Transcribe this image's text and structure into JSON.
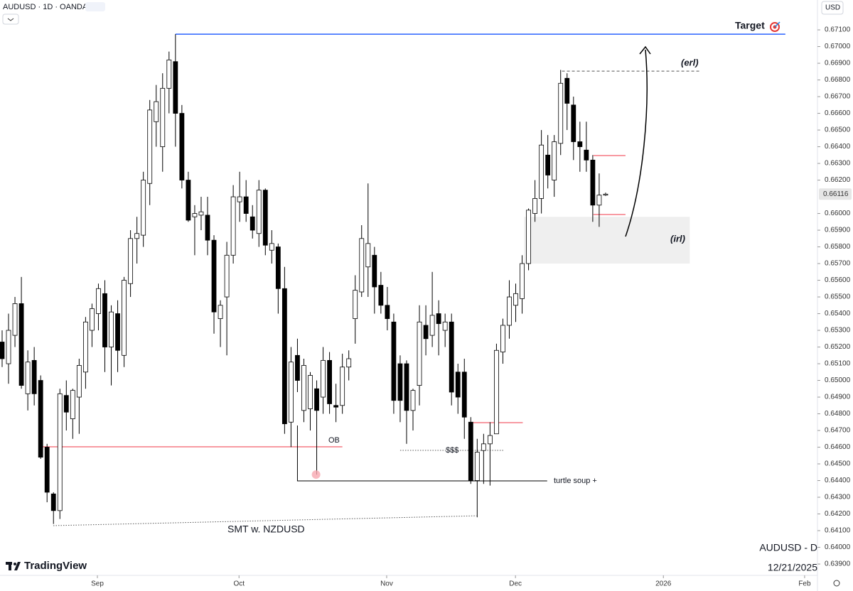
{
  "header": {
    "symbol": "AUDUSD · 1D · OANDA",
    "currency": "USD"
  },
  "chart_data": {
    "type": "candlestick",
    "ohlc": [
      [
        0.6523,
        0.653,
        0.6508,
        0.6513
      ],
      [
        0.651,
        0.654,
        0.6498,
        0.653
      ],
      [
        0.6527,
        0.655,
        0.652,
        0.6546
      ],
      [
        0.6546,
        0.6562,
        0.6495,
        0.6497
      ],
      [
        0.6492,
        0.6518,
        0.6482,
        0.6511
      ],
      [
        0.6512,
        0.652,
        0.6485,
        0.6492
      ],
      [
        0.65,
        0.6503,
        0.6453,
        0.6454
      ],
      [
        0.646,
        0.6462,
        0.6427,
        0.6433
      ],
      [
        0.6432,
        0.6433,
        0.6414,
        0.6422
      ],
      [
        0.6422,
        0.6495,
        0.6417,
        0.6492
      ],
      [
        0.6491,
        0.65,
        0.647,
        0.6481
      ],
      [
        0.6477,
        0.6495,
        0.6465,
        0.6494
      ],
      [
        0.649,
        0.6513,
        0.6468,
        0.6509
      ],
      [
        0.6505,
        0.6538,
        0.6495,
        0.6535
      ],
      [
        0.653,
        0.6546,
        0.652,
        0.6543
      ],
      [
        0.654,
        0.6558,
        0.653,
        0.6555
      ],
      [
        0.6552,
        0.656,
        0.6505,
        0.652
      ],
      [
        0.652,
        0.6545,
        0.6497,
        0.6541
      ],
      [
        0.654,
        0.6548,
        0.6505,
        0.6518
      ],
      [
        0.6515,
        0.6562,
        0.6508,
        0.656
      ],
      [
        0.6558,
        0.659,
        0.655,
        0.6585
      ],
      [
        0.6585,
        0.6598,
        0.657,
        0.6588
      ],
      [
        0.6587,
        0.6625,
        0.658,
        0.662
      ],
      [
        0.6618,
        0.6668,
        0.6605,
        0.6662
      ],
      [
        0.6655,
        0.6677,
        0.664,
        0.6667
      ],
      [
        0.664,
        0.6684,
        0.6625,
        0.6675
      ],
      [
        0.6675,
        0.6697,
        0.666,
        0.6692
      ],
      [
        0.6691,
        0.67074,
        0.664,
        0.666
      ],
      [
        0.666,
        0.6665,
        0.6615,
        0.662
      ],
      [
        0.662,
        0.6625,
        0.6595,
        0.6596
      ],
      [
        0.6598,
        0.6605,
        0.6575,
        0.66
      ],
      [
        0.6599,
        0.661,
        0.659,
        0.6601
      ],
      [
        0.6599,
        0.661,
        0.6575,
        0.6584
      ],
      [
        0.6584,
        0.6587,
        0.6528,
        0.6541
      ],
      [
        0.6537,
        0.6548,
        0.652,
        0.6545
      ],
      [
        0.655,
        0.6583,
        0.6515,
        0.6575
      ],
      [
        0.6575,
        0.6617,
        0.657,
        0.661
      ],
      [
        0.6607,
        0.6625,
        0.6595,
        0.661
      ],
      [
        0.661,
        0.662,
        0.6595,
        0.66
      ],
      [
        0.6598,
        0.6605,
        0.6585,
        0.659
      ],
      [
        0.6588,
        0.662,
        0.658,
        0.6614
      ],
      [
        0.6614,
        0.6615,
        0.6575,
        0.6581
      ],
      [
        0.6578,
        0.659,
        0.657,
        0.6582
      ],
      [
        0.658,
        0.6582,
        0.654,
        0.6555
      ],
      [
        0.6555,
        0.6568,
        0.6468,
        0.6474
      ],
      [
        0.6475,
        0.652,
        0.646,
        0.6511
      ],
      [
        0.6515,
        0.6525,
        0.6493,
        0.65
      ],
      [
        0.6482,
        0.6513,
        0.6475,
        0.6509
      ],
      [
        0.6483,
        0.6505,
        0.647,
        0.6503
      ],
      [
        0.6495,
        0.65,
        0.64436,
        0.6482
      ],
      [
        0.649,
        0.652,
        0.648,
        0.6512
      ],
      [
        0.6512,
        0.6517,
        0.648,
        0.6486
      ],
      [
        0.6485,
        0.6498,
        0.6475,
        0.6484
      ],
      [
        0.6485,
        0.6516,
        0.648,
        0.6508
      ],
      [
        0.6508,
        0.6518,
        0.65,
        0.6513
      ],
      [
        0.6537,
        0.6563,
        0.6522,
        0.6554
      ],
      [
        0.6553,
        0.6593,
        0.655,
        0.6585
      ],
      [
        0.6568,
        0.6618,
        0.655,
        0.6582
      ],
      [
        0.6575,
        0.658,
        0.654,
        0.6556
      ],
      [
        0.6557,
        0.6565,
        0.654,
        0.6545
      ],
      [
        0.6545,
        0.6556,
        0.653,
        0.6537
      ],
      [
        0.6535,
        0.654,
        0.648,
        0.6488
      ],
      [
        0.651,
        0.6515,
        0.6475,
        0.6488
      ],
      [
        0.651,
        0.6512,
        0.6462,
        0.6482
      ],
      [
        0.6482,
        0.6495,
        0.647,
        0.6494
      ],
      [
        0.6497,
        0.6545,
        0.6485,
        0.6535
      ],
      [
        0.6533,
        0.6545,
        0.6515,
        0.6525
      ],
      [
        0.6527,
        0.6565,
        0.652,
        0.6539
      ],
      [
        0.654,
        0.6548,
        0.6515,
        0.6534
      ],
      [
        0.653,
        0.654,
        0.652,
        0.6535
      ],
      [
        0.6535,
        0.654,
        0.6485,
        0.6493
      ],
      [
        0.6505,
        0.651,
        0.648,
        0.649
      ],
      [
        0.6505,
        0.6513,
        0.6465,
        0.6478
      ],
      [
        0.6475,
        0.6478,
        0.6438,
        0.644
      ],
      [
        0.644,
        0.6465,
        0.6418,
        0.6457
      ],
      [
        0.6458,
        0.6468,
        0.6438,
        0.6462
      ],
      [
        0.6462,
        0.6475,
        0.6437,
        0.6467
      ],
      [
        0.6468,
        0.6522,
        0.6468,
        0.6518
      ],
      [
        0.6517,
        0.6537,
        0.651,
        0.6533
      ],
      [
        0.6533,
        0.656,
        0.6525,
        0.655
      ],
      [
        0.6545,
        0.6558,
        0.6535,
        0.6552
      ],
      [
        0.6549,
        0.6575,
        0.654,
        0.657
      ],
      [
        0.657,
        0.6603,
        0.6566,
        0.6602
      ],
      [
        0.66,
        0.662,
        0.6595,
        0.6609
      ],
      [
        0.6609,
        0.665,
        0.66,
        0.6641
      ],
      [
        0.6635,
        0.6647,
        0.6615,
        0.6623
      ],
      [
        0.662,
        0.6647,
        0.661,
        0.6643
      ],
      [
        0.6642,
        0.6686,
        0.6635,
        0.6678
      ],
      [
        0.6681,
        0.6684,
        0.665,
        0.6666
      ],
      [
        0.6665,
        0.667,
        0.6632,
        0.6643
      ],
      [
        0.6643,
        0.6655,
        0.6625,
        0.664
      ],
      [
        0.6638,
        0.6655,
        0.6625,
        0.6632
      ],
      [
        0.6632,
        0.6635,
        0.6595,
        0.6605
      ],
      [
        0.6605,
        0.6624,
        0.6592,
        0.6611
      ],
      [
        0.6611,
        0.66125,
        0.66105,
        0.66116
      ]
    ],
    "up_color": "#ffffff",
    "down_color": "#000000",
    "xlim": [
      -0.33,
      127
    ],
    "xticks": [
      {
        "value": 14.84,
        "label": "Sep"
      },
      {
        "value": 36.9,
        "label": "Oct"
      },
      {
        "value": 59.9,
        "label": "Nov"
      },
      {
        "value": 79.96,
        "label": "Dec"
      },
      {
        "value": 103,
        "label": "2026"
      },
      {
        "value": 125,
        "label": "Feb"
      }
    ],
    "ylim": [
      0.63832,
      0.67279
    ],
    "yticks": [
      {
        "value": 0.671,
        "label": "0.67100"
      },
      {
        "value": 0.67,
        "label": "0.67000"
      },
      {
        "value": 0.669,
        "label": "0.66900"
      },
      {
        "value": 0.668,
        "label": "0.66800"
      },
      {
        "value": 0.667,
        "label": "0.66700"
      },
      {
        "value": 0.666,
        "label": "0.66600"
      },
      {
        "value": 0.665,
        "label": "0.66500"
      },
      {
        "value": 0.664,
        "label": "0.66400"
      },
      {
        "value": 0.663,
        "label": "0.66300"
      },
      {
        "value": 0.662,
        "label": "0.66200"
      },
      {
        "value": 0.66,
        "label": "0.66000"
      },
      {
        "value": 0.659,
        "label": "0.65900"
      },
      {
        "value": 0.658,
        "label": "0.65800"
      },
      {
        "value": 0.657,
        "label": "0.65700"
      },
      {
        "value": 0.656,
        "label": "0.65600"
      },
      {
        "value": 0.655,
        "label": "0.65500"
      },
      {
        "value": 0.654,
        "label": "0.65400"
      },
      {
        "value": 0.653,
        "label": "0.65300"
      },
      {
        "value": 0.652,
        "label": "0.65200"
      },
      {
        "value": 0.651,
        "label": "0.65100"
      },
      {
        "value": 0.65,
        "label": "0.65000"
      },
      {
        "value": 0.649,
        "label": "0.64900"
      },
      {
        "value": 0.648,
        "label": "0.64800"
      },
      {
        "value": 0.647,
        "label": "0.64700"
      },
      {
        "value": 0.646,
        "label": "0.64600"
      },
      {
        "value": 0.645,
        "label": "0.64500"
      },
      {
        "value": 0.644,
        "label": "0.64400"
      },
      {
        "value": 0.643,
        "label": "0.64300"
      },
      {
        "value": 0.642,
        "label": "0.64200"
      },
      {
        "value": 0.641,
        "label": "0.64100"
      },
      {
        "value": 0.64,
        "label": "0.64000"
      },
      {
        "value": 0.639,
        "label": "0.63900"
      }
    ],
    "drawings": [
      {
        "points": [
          [
            27,
            0.67074
          ],
          [
            122,
            0.67074
          ]
        ],
        "color": "#2962ff",
        "style": "solid"
      },
      {
        "points": [
          [
            87.2,
            0.66853
          ],
          [
            108.7,
            0.66853
          ]
        ],
        "color": "#555555",
        "style": "dashed"
      },
      {
        "points": [
          [
            92.1,
            0.66347
          ],
          [
            97.1,
            0.66347
          ]
        ],
        "color": "#f23645",
        "style": "solid"
      },
      {
        "points": [
          [
            92.1,
            0.65994
          ],
          [
            97.1,
            0.65994
          ]
        ],
        "color": "#f23645",
        "style": "solid"
      },
      {
        "points": [
          [
            6.3,
            0.64602
          ],
          [
            53,
            0.64602
          ]
        ],
        "color": "#f23645",
        "style": "solid"
      },
      {
        "points": [
          [
            46,
            0.6473
          ],
          [
            46,
            0.64398
          ],
          [
            84.9,
            0.64398
          ]
        ],
        "color": "#000000",
        "style": "solid"
      },
      {
        "points": [
          [
            62,
            0.64581
          ],
          [
            78.1,
            0.64581
          ]
        ],
        "color": "#555555",
        "style": "dotted"
      },
      {
        "points": [
          [
            72.9,
            0.64747
          ],
          [
            81.1,
            0.64747
          ]
        ],
        "color": "#f23645",
        "style": "solid"
      },
      {
        "points": [
          [
            7.97,
            0.6413
          ],
          [
            73.9,
            0.64189
          ]
        ],
        "color": "#555555",
        "style": "dotted"
      }
    ],
    "zone": {
      "x": [
        81.3,
        107.1
      ],
      "y": [
        0.6598,
        0.657
      ],
      "color": "#efefef"
    },
    "marker": {
      "x": 48.9,
      "y": 0.64436,
      "color": "#f7a8b0"
    },
    "annotations": [
      "Target",
      "(erl)",
      "(irl)",
      "OB",
      "$$$",
      "turtle soup +",
      "SMT w. NZDUSD"
    ]
  },
  "watermark": {
    "symbol": "AUDUSD - D",
    "date": "12/21/2025",
    "brand": "TradingView"
  }
}
